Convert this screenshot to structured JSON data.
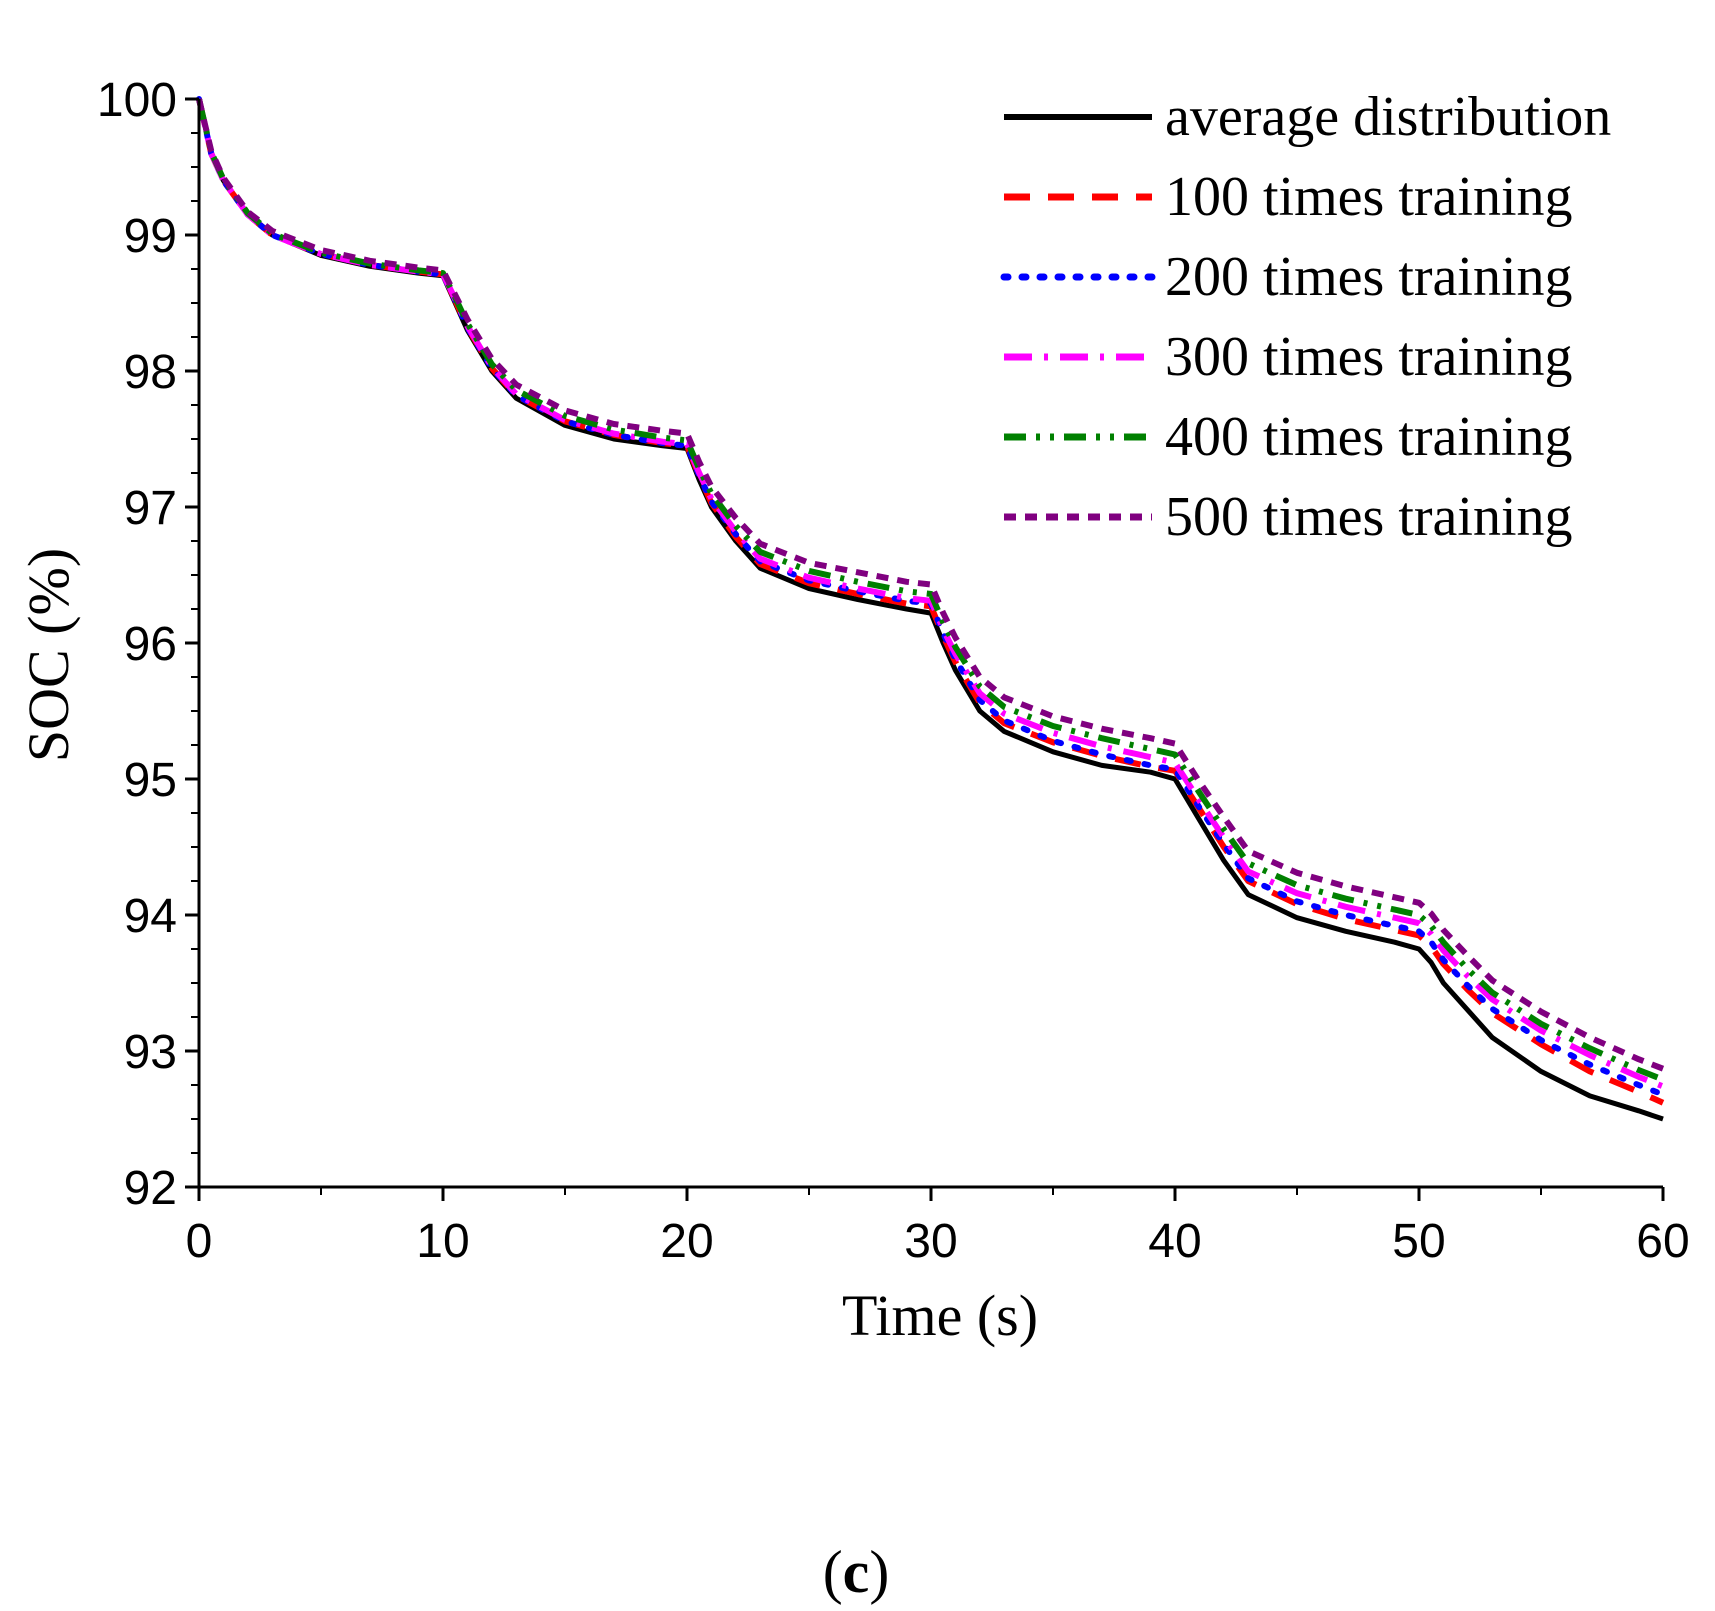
{
  "chart_data": {
    "type": "line",
    "xlabel": "Time (s)",
    "ylabel": "SOC (%)",
    "xlim": [
      0,
      60
    ],
    "ylim": [
      92,
      100
    ],
    "xticks": [
      0,
      10,
      20,
      30,
      40,
      50,
      60
    ],
    "yticks": [
      92,
      93,
      94,
      95,
      96,
      97,
      98,
      99,
      100
    ],
    "xtick_labels": [
      "0",
      "10",
      "20",
      "30",
      "40",
      "50",
      "60"
    ],
    "ytick_labels": [
      "92",
      "93",
      "94",
      "95",
      "96",
      "97",
      "98",
      "99",
      "100"
    ],
    "grid": false,
    "legend_position": "top-right",
    "x": [
      0,
      0.5,
      1,
      2,
      3,
      5,
      7,
      9,
      10,
      10.5,
      11,
      12,
      13,
      15,
      17,
      19,
      20,
      20.5,
      21,
      22,
      23,
      25,
      27,
      29,
      30,
      30.5,
      31,
      32,
      33,
      35,
      37,
      39,
      40,
      40.5,
      41,
      42,
      43,
      45,
      47,
      49,
      50,
      50.5,
      51,
      52,
      53,
      55,
      57,
      59,
      60
    ],
    "series": [
      {
        "name": "average distribution",
        "color": "#000000",
        "dash": "solid",
        "values": [
          100,
          99.6,
          99.4,
          99.15,
          99.0,
          98.85,
          98.77,
          98.72,
          98.7,
          98.5,
          98.3,
          98.0,
          97.8,
          97.6,
          97.5,
          97.45,
          97.43,
          97.2,
          97.0,
          96.75,
          96.55,
          96.4,
          96.32,
          96.25,
          96.22,
          96.0,
          95.8,
          95.5,
          95.35,
          95.2,
          95.1,
          95.05,
          95.0,
          94.85,
          94.7,
          94.4,
          94.15,
          93.98,
          93.88,
          93.8,
          93.75,
          93.65,
          93.5,
          93.3,
          93.1,
          92.85,
          92.67,
          92.56,
          92.5
        ]
      },
      {
        "name": "100 times training",
        "color": "#ff0000",
        "dash": "long-dash",
        "values": [
          100,
          99.6,
          99.4,
          99.15,
          99.0,
          98.86,
          98.78,
          98.73,
          98.71,
          98.52,
          98.32,
          98.02,
          97.82,
          97.63,
          97.53,
          97.47,
          97.45,
          97.23,
          97.03,
          96.78,
          96.58,
          96.44,
          96.36,
          96.29,
          96.27,
          96.05,
          95.86,
          95.56,
          95.41,
          95.27,
          95.17,
          95.09,
          95.06,
          94.92,
          94.78,
          94.5,
          94.25,
          94.08,
          93.97,
          93.89,
          93.85,
          93.77,
          93.64,
          93.45,
          93.28,
          93.05,
          92.85,
          92.7,
          92.62
        ]
      },
      {
        "name": "200 times training",
        "color": "#0000ff",
        "dash": "dot",
        "values": [
          100,
          99.6,
          99.4,
          99.15,
          99.0,
          98.86,
          98.78,
          98.73,
          98.71,
          98.52,
          98.32,
          98.02,
          97.82,
          97.63,
          97.53,
          97.47,
          97.45,
          97.23,
          97.04,
          96.8,
          96.6,
          96.46,
          96.38,
          96.31,
          96.29,
          96.07,
          95.88,
          95.58,
          95.43,
          95.28,
          95.18,
          95.1,
          95.07,
          94.93,
          94.79,
          94.52,
          94.27,
          94.1,
          94.0,
          93.92,
          93.88,
          93.8,
          93.67,
          93.48,
          93.31,
          93.08,
          92.9,
          92.75,
          92.68
        ]
      },
      {
        "name": "300 times training",
        "color": "#ff00ff",
        "dash": "dash-dot",
        "values": [
          100,
          99.6,
          99.4,
          99.15,
          99.0,
          98.86,
          98.78,
          98.73,
          98.71,
          98.53,
          98.33,
          98.03,
          97.83,
          97.64,
          97.54,
          97.48,
          97.46,
          97.25,
          97.06,
          96.82,
          96.62,
          96.48,
          96.4,
          96.33,
          96.31,
          96.1,
          95.92,
          95.63,
          95.48,
          95.34,
          95.24,
          95.16,
          95.12,
          94.98,
          94.84,
          94.57,
          94.32,
          94.16,
          94.06,
          93.98,
          93.94,
          93.86,
          93.74,
          93.55,
          93.38,
          93.15,
          92.97,
          92.81,
          92.74
        ]
      },
      {
        "name": "400 times training",
        "color": "#008000",
        "dash": "dash-dot-dot",
        "values": [
          100,
          99.61,
          99.41,
          99.16,
          99.01,
          98.87,
          98.79,
          98.74,
          98.72,
          98.54,
          98.35,
          98.05,
          97.86,
          97.67,
          97.57,
          97.51,
          97.49,
          97.28,
          97.1,
          96.86,
          96.67,
          96.53,
          96.45,
          96.38,
          96.36,
          96.15,
          95.97,
          95.68,
          95.53,
          95.39,
          95.3,
          95.22,
          95.18,
          95.04,
          94.9,
          94.63,
          94.38,
          94.22,
          94.12,
          94.04,
          94.0,
          93.92,
          93.8,
          93.6,
          93.43,
          93.2,
          93.02,
          92.86,
          92.79
        ]
      },
      {
        "name": "500 times training",
        "color": "#800080",
        "dash": "short-dash",
        "values": [
          100,
          99.62,
          99.42,
          99.17,
          99.03,
          98.89,
          98.81,
          98.76,
          98.74,
          98.56,
          98.38,
          98.09,
          97.9,
          97.71,
          97.61,
          97.56,
          97.54,
          97.33,
          97.15,
          96.92,
          96.73,
          96.59,
          96.52,
          96.45,
          96.43,
          96.22,
          96.04,
          95.75,
          95.6,
          95.46,
          95.37,
          95.3,
          95.26,
          95.12,
          94.98,
          94.72,
          94.47,
          94.31,
          94.21,
          94.13,
          94.09,
          94.01,
          93.89,
          93.7,
          93.52,
          93.29,
          93.1,
          92.94,
          92.87
        ]
      }
    ]
  },
  "caption": {
    "open": "(",
    "letter": "c",
    "close": ")"
  }
}
